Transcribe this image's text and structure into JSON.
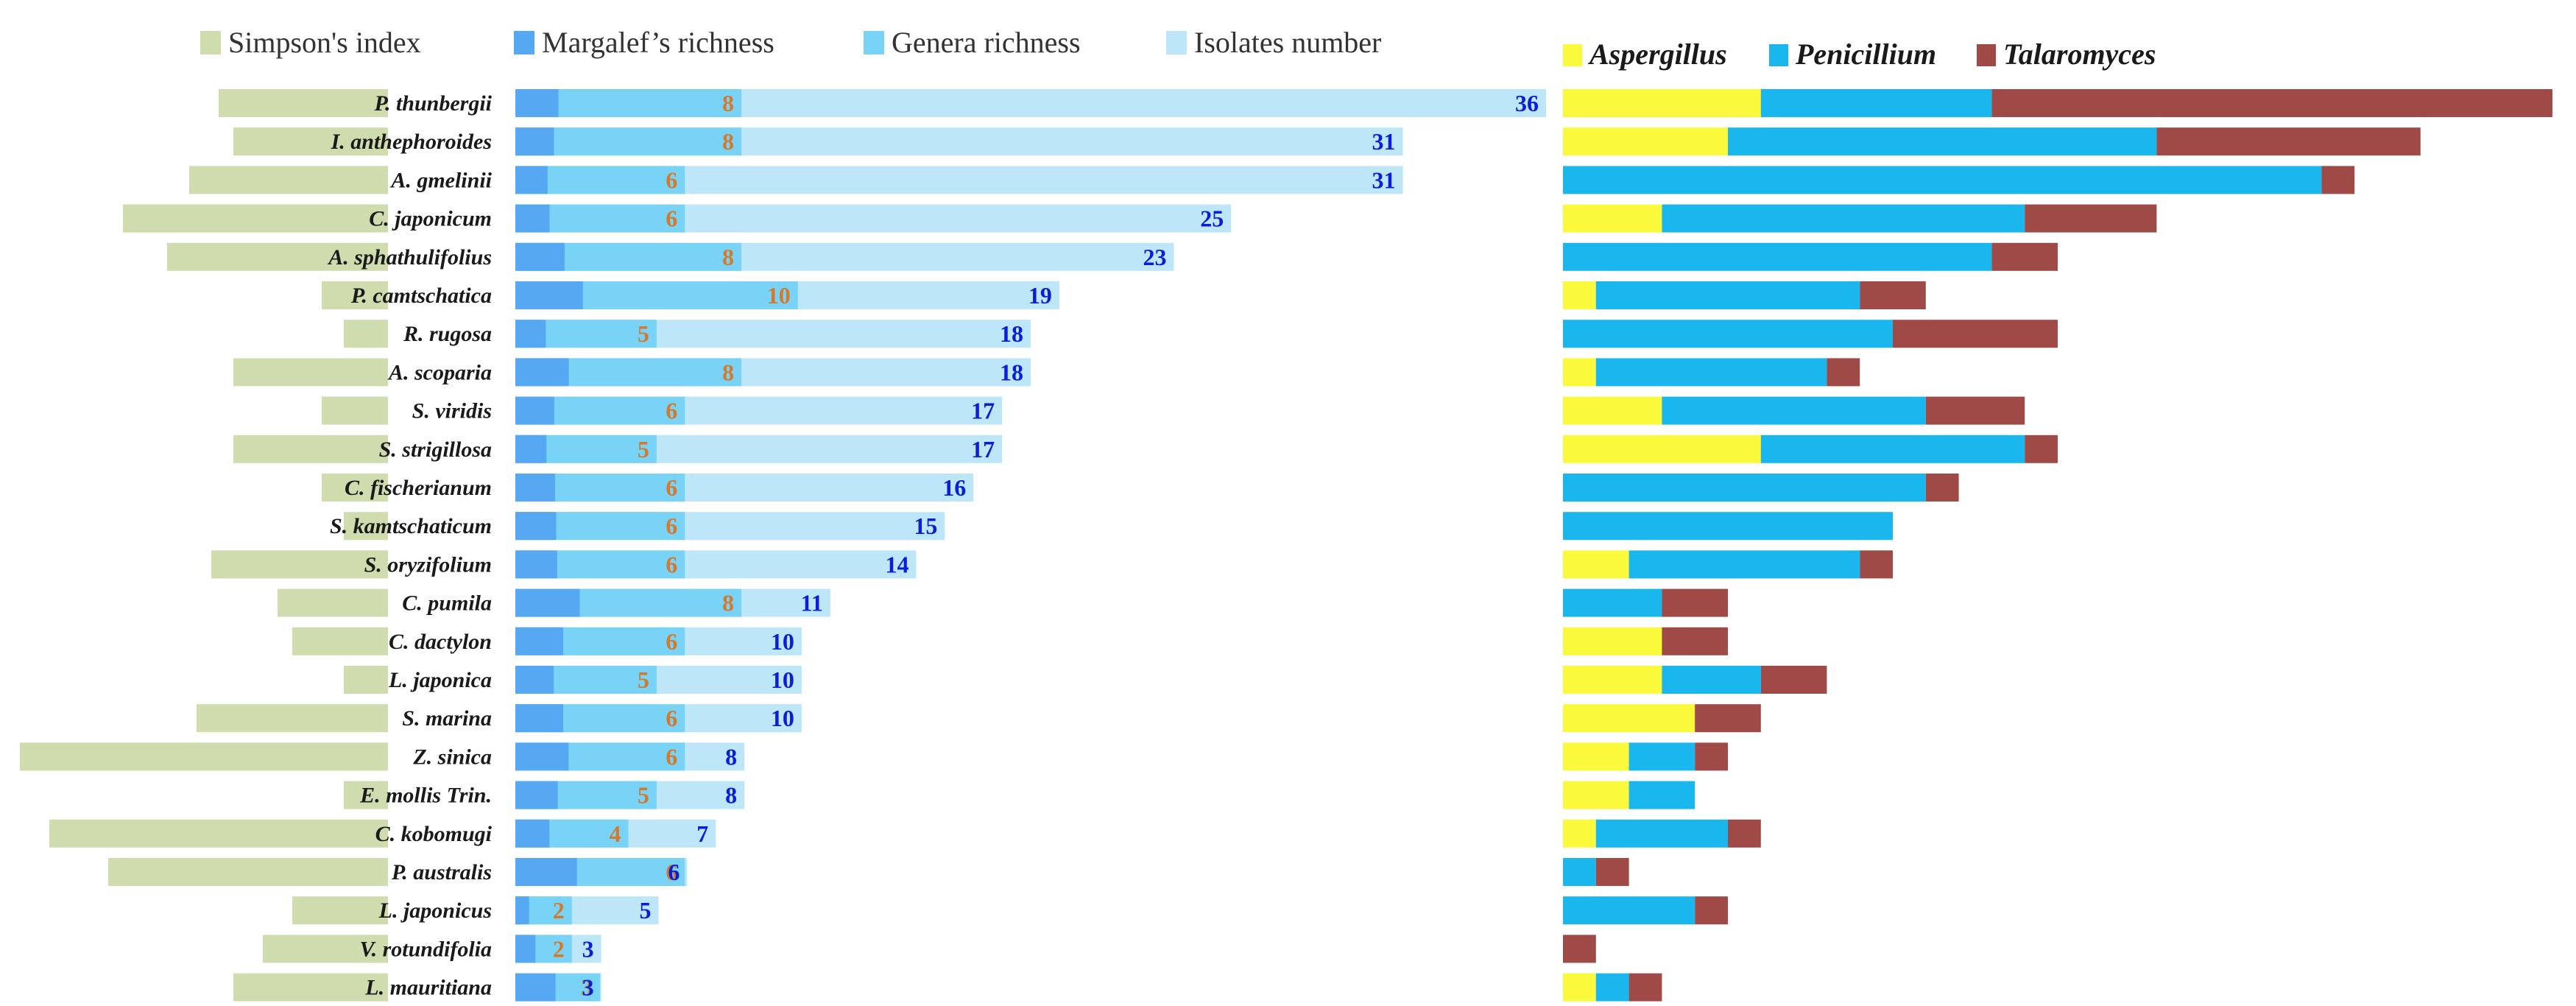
{
  "chart_data": [
    {
      "type": "bar",
      "title": "",
      "orientation": "horizontal",
      "categories": [
        "P. thunbergii",
        "I. anthephoroides",
        "A. gmelinii",
        "C. japonicum",
        "A. sphathulifolius",
        "P. camtschatica",
        "R. rugosa",
        "A. scoparia",
        "S. viridis",
        "S. strigillosa",
        "C. fischerianum",
        "S. kamtschaticum",
        "S. oryzifolium",
        "C. pumila",
        "C. dactylon",
        "L. japonica",
        "S. marina",
        "Z. sinica",
        "E. mollis Trin.",
        "C. kobomugi",
        "P. australis",
        "L. japonicus",
        "V. rotundifolia",
        "L. mauritiana"
      ],
      "series": [
        {
          "name": "Simpson's index",
          "color": "#cfdcad",
          "values": [
            0.23,
            0.21,
            0.27,
            0.36,
            0.3,
            0.09,
            0.06,
            0.21,
            0.09,
            0.21,
            0.09,
            0.06,
            0.24,
            0.15,
            0.13,
            0.06,
            0.26,
            0.5,
            0.06,
            0.46,
            0.38,
            0.13,
            0.17,
            0.21
          ]
        },
        {
          "name": "Margalef’s richness",
          "color": "#56a8f2",
          "values": [
            1.95,
            1.75,
            1.46,
            1.55,
            2.23,
            3.06,
            1.38,
            2.42,
            1.76,
            1.41,
            1.8,
            1.85,
            1.89,
            2.92,
            2.17,
            1.74,
            2.17,
            2.41,
            1.92,
            1.54,
            2.79,
            0.62,
            0.91,
            1.82
          ]
        },
        {
          "name": "Genera richness",
          "color": "#78d3f6",
          "values": [
            8,
            8,
            6,
            6,
            8,
            10,
            5,
            8,
            6,
            5,
            6,
            6,
            6,
            8,
            6,
            5,
            6,
            6,
            5,
            4,
            6,
            2,
            2,
            3
          ]
        },
        {
          "name": "Isolates number",
          "color": "#bde7f9",
          "values": [
            36,
            31,
            31,
            25,
            23,
            19,
            18,
            18,
            17,
            17,
            16,
            15,
            14,
            11,
            10,
            10,
            10,
            8,
            8,
            7,
            6,
            5,
            3,
            3
          ]
        }
      ],
      "labeled_series": [
        "Genera richness",
        "Isolates number"
      ]
    },
    {
      "type": "bar",
      "stacked": true,
      "orientation": "horizontal",
      "title": "",
      "categories": [
        "P. thunbergii",
        "I. anthephoroides",
        "A. gmelinii",
        "C. japonicum",
        "A. sphathulifolius",
        "P. camtschatica",
        "R. rugosa",
        "A. scoparia",
        "S. viridis",
        "S. strigillosa",
        "C. fischerianum",
        "S. kamtschaticum",
        "S. oryzifolium",
        "C. pumila",
        "C. dactylon",
        "L. japonica",
        "S. marina",
        "Z. sinica",
        "E. mollis Trin.",
        "C. kobomugi",
        "P. australis",
        "L. japonicus",
        "V. rotundifolia",
        "L. mauritiana"
      ],
      "series": [
        {
          "name": "Aspergillus",
          "color": "#fbf93c",
          "values": [
            6,
            5,
            0,
            3,
            0,
            1,
            0,
            1,
            3,
            6,
            0,
            0,
            2,
            0,
            3,
            3,
            4,
            2,
            2,
            1,
            0,
            0,
            0,
            1
          ]
        },
        {
          "name": "Penicillium",
          "color": "#1ab7ee",
          "values": [
            7,
            13,
            23,
            11,
            13,
            8,
            10,
            7,
            8,
            8,
            11,
            10,
            7,
            3,
            0,
            3,
            0,
            2,
            2,
            4,
            1,
            4,
            0,
            1
          ]
        },
        {
          "name": "Talaromyces",
          "color": "#a04a48",
          "values": [
            17,
            8,
            1,
            4,
            2,
            2,
            5,
            1,
            3,
            1,
            1,
            0,
            1,
            2,
            2,
            2,
            2,
            1,
            0,
            1,
            1,
            1,
            1,
            1
          ]
        }
      ]
    }
  ]
}
